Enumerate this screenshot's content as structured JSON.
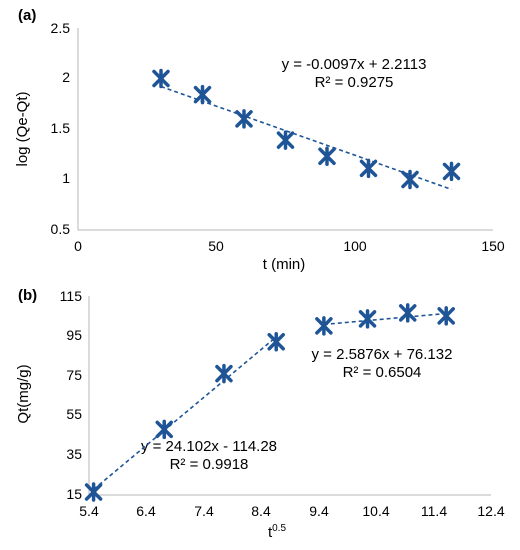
{
  "chart_data": [
    {
      "type": "scatter",
      "panel_label": "(a)",
      "xlabel": "t (min)",
      "ylabel": "log (Qe-Qt)",
      "xlim": [
        0,
        150
      ],
      "ylim": [
        0.5,
        2.5
      ],
      "x_ticks": [
        0,
        50,
        100,
        150
      ],
      "y_ticks": [
        0.5,
        1,
        1.5,
        2,
        2.5
      ],
      "x_tick_labels": [
        "0",
        "50",
        "100",
        "150"
      ],
      "y_tick_labels": [
        "0.5",
        "1",
        "1.5",
        "2",
        "2.5"
      ],
      "grid": false,
      "marker_color": "#1f5597",
      "trendline_color": "#1f5597",
      "series": [
        {
          "x": [
            30,
            45,
            60,
            75,
            90,
            105,
            120,
            135
          ],
          "y": [
            2.0,
            1.84,
            1.6,
            1.39,
            1.23,
            1.11,
            1.0,
            1.08
          ]
        }
      ],
      "trendlines": [
        {
          "slope": -0.0097,
          "intercept": 2.2113,
          "x_range": [
            30,
            135
          ]
        }
      ],
      "annotations": [
        "y = -0.0097x + 2.2113",
        "R² = 0.9275"
      ]
    },
    {
      "type": "scatter",
      "panel_label": "(b)",
      "xlabel_base": "t",
      "xlabel_sup": "0.5",
      "ylabel": "Qt(mg/g)",
      "xlim": [
        5.4,
        12.4
      ],
      "ylim": [
        15,
        115
      ],
      "x_ticks": [
        5.4,
        6.4,
        7.4,
        8.4,
        9.4,
        10.4,
        11.4,
        12.4
      ],
      "y_ticks": [
        15,
        35,
        55,
        75,
        95,
        115
      ],
      "x_tick_labels": [
        "5.4",
        "6.4",
        "7.4",
        "8.4",
        "9.4",
        "10.4",
        "11.4",
        "12.4"
      ],
      "y_tick_labels": [
        "15",
        "35",
        "55",
        "75",
        "95",
        "115"
      ],
      "grid": false,
      "marker_color": "#1f5597",
      "trendline_color": "#1f5597",
      "series": [
        {
          "x": [
            5.48,
            6.71,
            7.75,
            8.66,
            9.49,
            10.25,
            10.95,
            11.62
          ],
          "y": [
            16.5,
            48,
            76,
            92,
            100,
            103.5,
            106.5,
            105
          ]
        }
      ],
      "trendlines": [
        {
          "slope": 24.102,
          "intercept": -114.28,
          "x_range": [
            5.48,
            8.66
          ]
        },
        {
          "slope": 2.5876,
          "intercept": 76.132,
          "x_range": [
            9.49,
            11.62
          ]
        }
      ],
      "annotations": [
        "y = 2.5876x + 76.132",
        "R² = 0.6504",
        "y = 24.102x - 114.28",
        "R² = 0.9918"
      ]
    }
  ]
}
